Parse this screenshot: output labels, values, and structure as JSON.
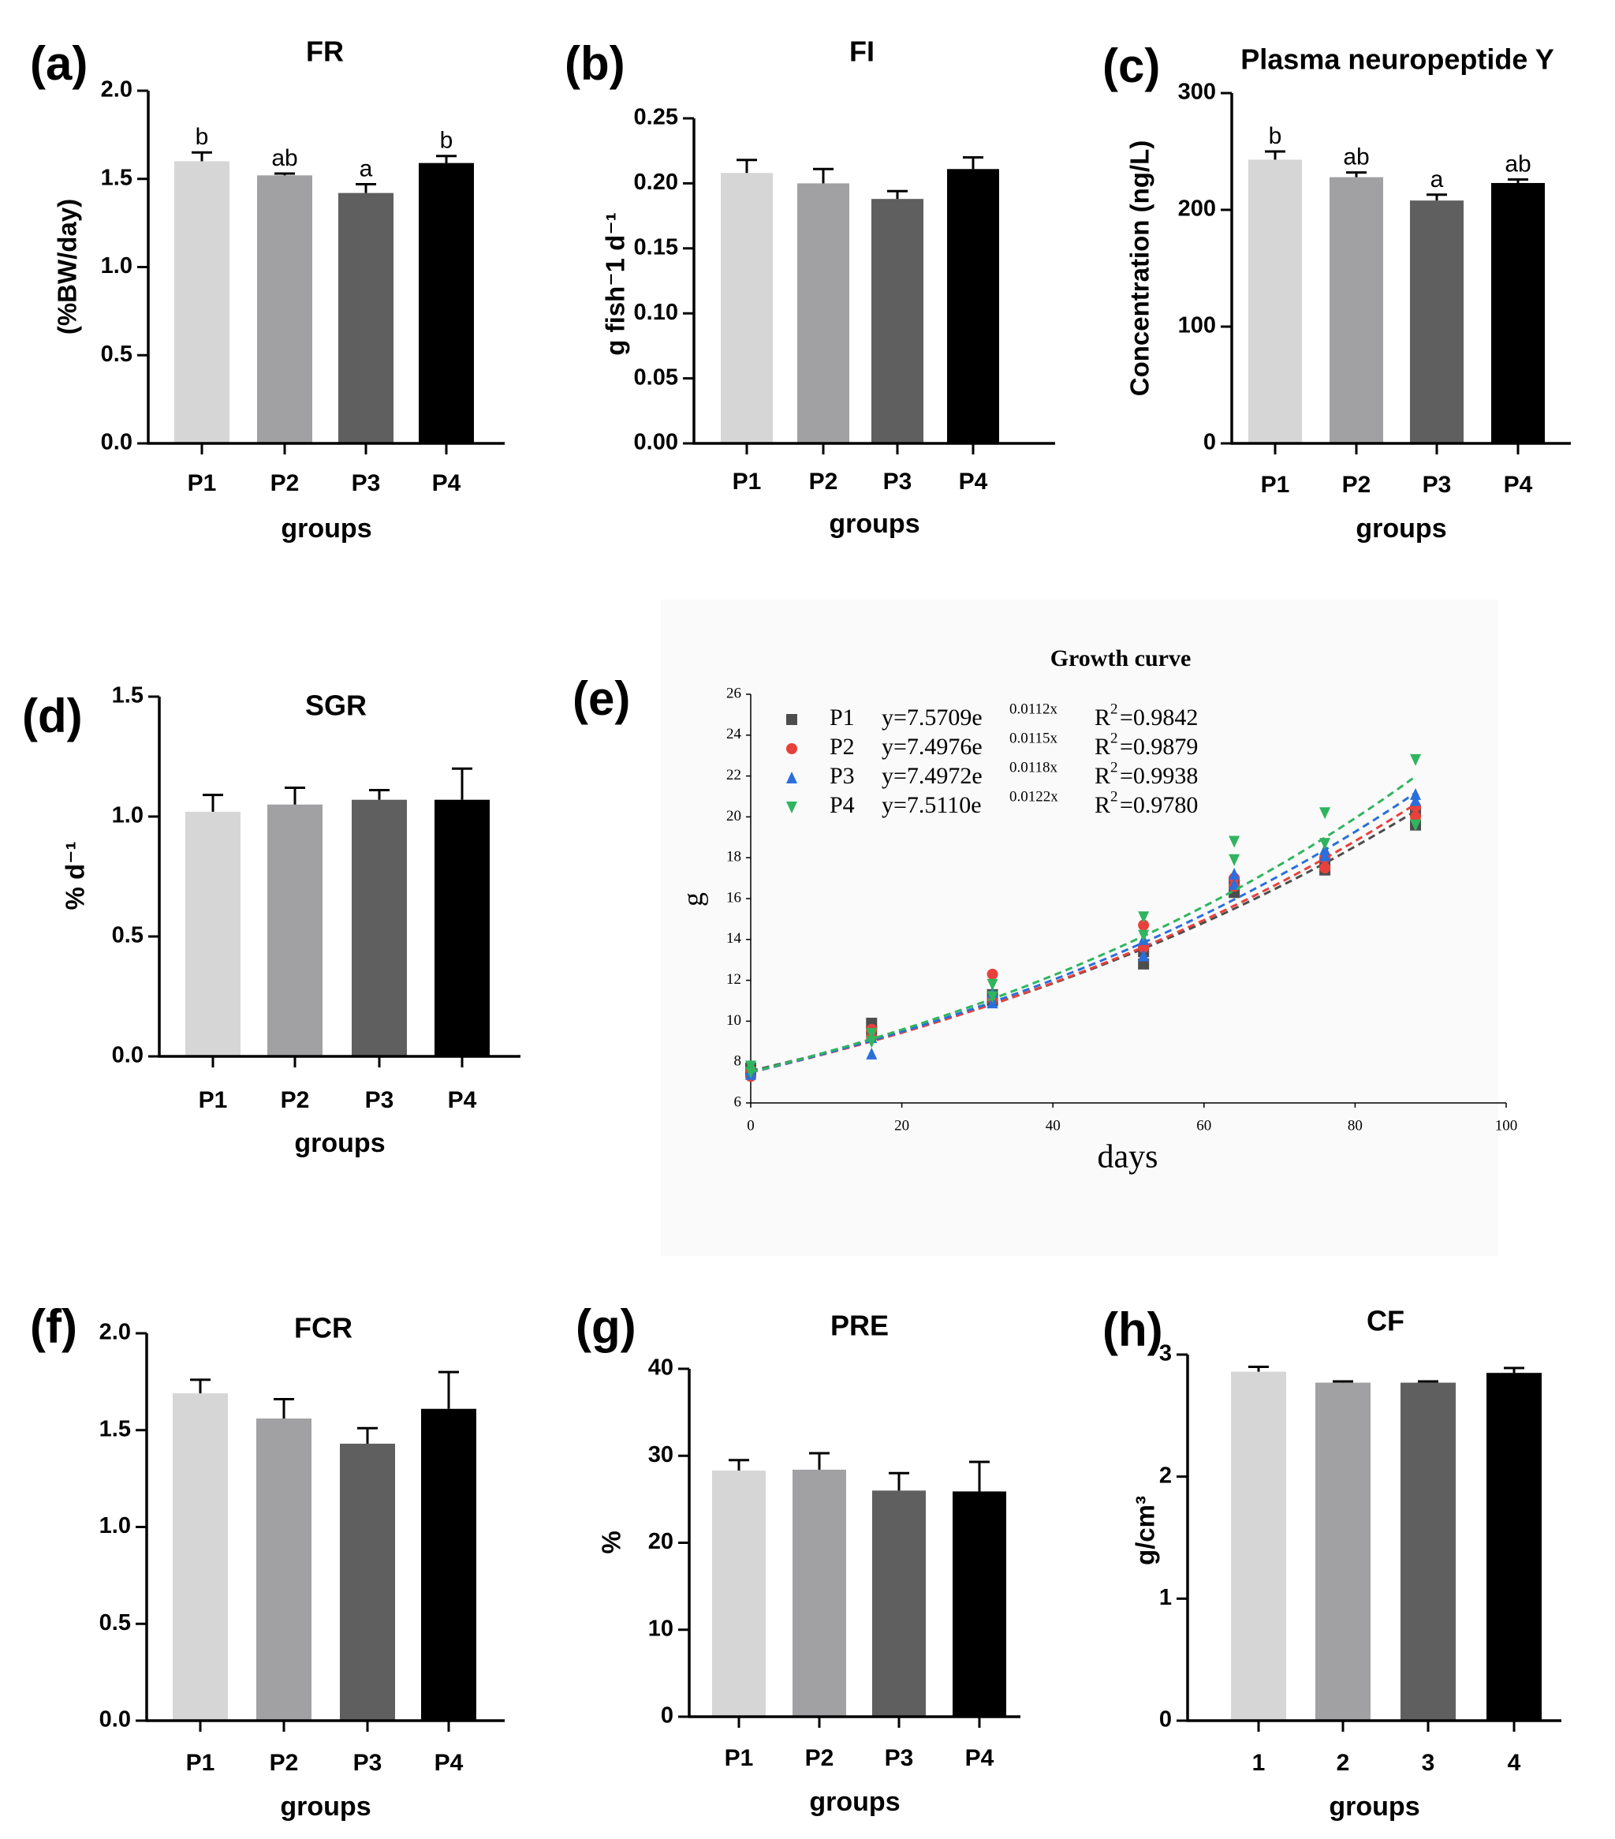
{
  "colors": {
    "P1": "#d6d6d6",
    "P2": "#a1a1a3",
    "P3": "#5f5f5f",
    "P4": "#000000",
    "axis": "#000000",
    "curveP1": "#4d4d4d",
    "curveP2": "#e8413b",
    "curveP3": "#2a6fdb",
    "curveP4": "#2fb55f"
  },
  "chart_data": [
    {
      "id": "a",
      "panel_label": "(a)",
      "type": "bar",
      "title": "FR",
      "ylabel": "(%BW/day)",
      "xlabel": "groups",
      "categories": [
        "P1",
        "P2",
        "P3",
        "P4"
      ],
      "values": [
        1.6,
        1.52,
        1.42,
        1.59
      ],
      "errors": [
        0.05,
        0.01,
        0.05,
        0.04
      ],
      "annotations": [
        "b",
        "ab",
        "a",
        "b"
      ],
      "ylim": [
        0,
        2.0
      ],
      "yticks": [
        0.0,
        0.5,
        1.0,
        1.5,
        2.0
      ],
      "ytick_labels": [
        "0.0",
        "0.5",
        "1.0",
        "1.5",
        "2.0"
      ]
    },
    {
      "id": "b",
      "panel_label": "(b)",
      "type": "bar",
      "title": "FI",
      "ylabel": "g fish⁻1 d⁻¹",
      "xlabel": "groups",
      "categories": [
        "P1",
        "P2",
        "P3",
        "P4"
      ],
      "values": [
        0.208,
        0.2,
        0.188,
        0.211
      ],
      "errors": [
        0.01,
        0.011,
        0.006,
        0.009
      ],
      "annotations": [
        "",
        "",
        "",
        ""
      ],
      "ylim": [
        0,
        0.25
      ],
      "yticks": [
        0.0,
        0.05,
        0.1,
        0.15,
        0.2,
        0.25
      ],
      "ytick_labels": [
        "0.00",
        "0.05",
        "0.10",
        "0.15",
        "0.20",
        "0.25"
      ]
    },
    {
      "id": "c",
      "panel_label": "(c)",
      "type": "bar",
      "title": "Plasma neuropeptide Y",
      "ylabel": "Concentration (ng/L)",
      "xlabel": "groups",
      "categories": [
        "P1",
        "P2",
        "P3",
        "P4"
      ],
      "values": [
        243,
        228,
        208,
        223
      ],
      "errors": [
        7,
        4,
        5,
        3
      ],
      "annotations": [
        "b",
        "ab",
        "a",
        "ab"
      ],
      "ylim": [
        0,
        300
      ],
      "yticks": [
        0,
        100,
        200,
        300
      ],
      "ytick_labels": [
        "0",
        "100",
        "200",
        "300"
      ]
    },
    {
      "id": "d",
      "panel_label": "(d)",
      "type": "bar",
      "title": "SGR",
      "ylabel": "% d⁻¹",
      "xlabel": "groups",
      "categories": [
        "P1",
        "P2",
        "P3",
        "P4"
      ],
      "values": [
        1.02,
        1.05,
        1.07,
        1.07
      ],
      "errors": [
        0.07,
        0.07,
        0.04,
        0.13
      ],
      "annotations": [
        "",
        "",
        "",
        ""
      ],
      "ylim": [
        0,
        1.5
      ],
      "yticks": [
        0.0,
        0.5,
        1.0,
        1.5
      ],
      "ytick_labels": [
        "0.0",
        "0.5",
        "1.0",
        "1.5"
      ]
    },
    {
      "id": "e",
      "panel_label": "(e)",
      "type": "scatter",
      "title": "Growth curve",
      "xlabel": "days",
      "ylabel": "g",
      "xlim": [
        0,
        100
      ],
      "ylim": [
        6,
        26
      ],
      "xticks": [
        0,
        20,
        40,
        60,
        80,
        100
      ],
      "yticks": [
        6,
        8,
        10,
        12,
        14,
        16,
        18,
        20,
        22,
        24,
        26
      ],
      "series": [
        {
          "name": "P1",
          "marker": "square",
          "color_key": "curveP1",
          "eq_a": 7.5709,
          "eq_k": 0.0112,
          "eq_prefix": "y=7.5709e",
          "eq_exp": "0.0112x",
          "r2": "=0.9842",
          "points": [
            [
              0,
              7.5
            ],
            [
              0,
              7.7
            ],
            [
              16,
              9.9
            ],
            [
              16,
              9.5
            ],
            [
              32,
              11.0
            ],
            [
              32,
              11.3
            ],
            [
              52,
              12.8
            ],
            [
              52,
              13.4
            ],
            [
              64,
              16.3
            ],
            [
              64,
              16.8
            ],
            [
              76,
              17.4
            ],
            [
              76,
              17.8
            ],
            [
              88,
              19.6
            ],
            [
              88,
              20.3
            ]
          ]
        },
        {
          "name": "P2",
          "marker": "circle",
          "color_key": "curveP2",
          "eq_a": 7.4976,
          "eq_k": 0.0115,
          "eq_prefix": "y=7.4976e",
          "eq_exp": "0.0115x",
          "r2": "=0.9879",
          "points": [
            [
              0,
              7.3
            ],
            [
              0,
              7.6
            ],
            [
              16,
              9.2
            ],
            [
              16,
              9.6
            ],
            [
              32,
              12.3
            ],
            [
              32,
              11.1
            ],
            [
              52,
              14.7
            ],
            [
              52,
              13.6
            ],
            [
              64,
              16.6
            ],
            [
              64,
              17.0
            ],
            [
              76,
              17.5
            ],
            [
              76,
              18.0
            ],
            [
              88,
              20.0
            ],
            [
              88,
              20.5
            ]
          ]
        },
        {
          "name": "P3",
          "marker": "triangle-up",
          "color_key": "curveP3",
          "eq_a": 7.4972,
          "eq_k": 0.0118,
          "eq_prefix": "y=7.4972e",
          "eq_exp": "0.0118x",
          "r2": "=0.9938",
          "points": [
            [
              0,
              7.4
            ],
            [
              0,
              7.6
            ],
            [
              16,
              8.4
            ],
            [
              16,
              9.2
            ],
            [
              32,
              11.4
            ],
            [
              32,
              10.9
            ],
            [
              52,
              13.2
            ],
            [
              52,
              14.0
            ],
            [
              64,
              17.2
            ],
            [
              64,
              16.7
            ],
            [
              76,
              18.1
            ],
            [
              76,
              18.4
            ],
            [
              88,
              20.8
            ],
            [
              88,
              21.1
            ]
          ]
        },
        {
          "name": "P4",
          "marker": "triangle-down",
          "color_key": "curveP4",
          "eq_a": 7.511,
          "eq_k": 0.0122,
          "eq_prefix": "y=7.5110e",
          "eq_exp": "0.0122x",
          "r2": "=0.9780",
          "points": [
            [
              0,
              7.5
            ],
            [
              0,
              7.8
            ],
            [
              16,
              9.4
            ],
            [
              16,
              9.0
            ],
            [
              32,
              11.8
            ],
            [
              32,
              11.2
            ],
            [
              52,
              15.1
            ],
            [
              52,
              14.2
            ],
            [
              64,
              18.8
            ],
            [
              64,
              17.9
            ],
            [
              76,
              20.2
            ],
            [
              76,
              18.7
            ],
            [
              88,
              22.8
            ],
            [
              88,
              19.6
            ]
          ]
        }
      ]
    },
    {
      "id": "f",
      "panel_label": "(f)",
      "type": "bar",
      "title": "FCR",
      "ylabel": "",
      "xlabel": "groups",
      "categories": [
        "P1",
        "P2",
        "P3",
        "P4"
      ],
      "values": [
        1.69,
        1.56,
        1.43,
        1.61
      ],
      "errors": [
        0.07,
        0.1,
        0.08,
        0.19
      ],
      "annotations": [
        "",
        "",
        "",
        ""
      ],
      "ylim": [
        0,
        2.0
      ],
      "yticks": [
        0.0,
        0.5,
        1.0,
        1.5,
        2.0
      ],
      "ytick_labels": [
        "0.0",
        "0.5",
        "1.0",
        "1.5",
        "2.0"
      ]
    },
    {
      "id": "g",
      "panel_label": "(g)",
      "type": "bar",
      "title": "PRE",
      "ylabel": "%",
      "xlabel": "groups",
      "categories": [
        "P1",
        "P2",
        "P3",
        "P4"
      ],
      "values": [
        28.3,
        28.4,
        26.0,
        25.9
      ],
      "errors": [
        1.2,
        1.9,
        2.0,
        3.4
      ],
      "annotations": [
        "",
        "",
        "",
        ""
      ],
      "ylim": [
        0,
        40
      ],
      "yticks": [
        0,
        10,
        20,
        30,
        40
      ],
      "ytick_labels": [
        "0",
        "10",
        "20",
        "30",
        "40"
      ]
    },
    {
      "id": "h",
      "panel_label": "(h)",
      "type": "bar",
      "title": "CF",
      "ylabel": "g/cm³",
      "xlabel": "groups",
      "categories": [
        "1",
        "2",
        "3",
        "4"
      ],
      "values": [
        2.86,
        2.77,
        2.77,
        2.85
      ],
      "errors": [
        0.04,
        0.01,
        0.01,
        0.04
      ],
      "annotations": [
        "",
        "",
        "",
        ""
      ],
      "ylim": [
        0,
        3
      ],
      "yticks": [
        0,
        1,
        2,
        3
      ],
      "ytick_labels": [
        "0",
        "1",
        "2",
        "3"
      ]
    }
  ]
}
